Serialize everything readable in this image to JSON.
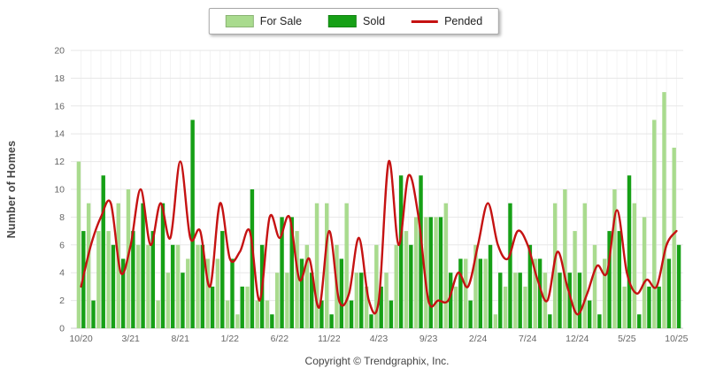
{
  "legend": {
    "items": [
      {
        "label": "For Sale",
        "color": "#a9db8e",
        "type": "swatch"
      },
      {
        "label": "Sold",
        "color": "#16a016",
        "type": "swatch"
      },
      {
        "label": "Pended",
        "color": "#c51212",
        "type": "line"
      }
    ]
  },
  "y_axis": {
    "title": "Number of Homes",
    "min": 0,
    "max": 20,
    "tick_step": 2,
    "tick_labels": [
      "0",
      "2",
      "4",
      "6",
      "8",
      "10",
      "12",
      "14",
      "16",
      "18",
      "20"
    ]
  },
  "x_axis": {
    "tick_labels": [
      "10/20",
      "3/21",
      "8/21",
      "1/22",
      "6/22",
      "11/22",
      "4/23",
      "9/23",
      "2/24",
      "7/24",
      "12/24",
      "5/25",
      "10/25"
    ],
    "label_every": 5
  },
  "footer": {
    "copyright": "Copyright © Trendgraphix, Inc."
  },
  "chart_data": {
    "type": "bar+line",
    "title": "",
    "xlabel": "",
    "ylabel": "Number of Homes",
    "ylim": [
      0,
      20
    ],
    "grid": "horizontal",
    "legend_position": "top-center",
    "categories": [
      "10/20",
      "11/20",
      "12/20",
      "1/21",
      "2/21",
      "3/21",
      "4/21",
      "5/21",
      "6/21",
      "7/21",
      "8/21",
      "9/21",
      "10/21",
      "11/21",
      "12/21",
      "1/22",
      "2/22",
      "3/22",
      "4/22",
      "5/22",
      "6/22",
      "7/22",
      "8/22",
      "9/22",
      "10/22",
      "11/22",
      "12/22",
      "1/23",
      "2/23",
      "3/23",
      "4/23",
      "5/23",
      "6/23",
      "7/23",
      "8/23",
      "9/23",
      "10/23",
      "11/23",
      "12/23",
      "1/24",
      "2/24",
      "3/24",
      "4/24",
      "5/24",
      "6/24",
      "7/24",
      "8/24",
      "9/24",
      "10/24",
      "11/24",
      "12/24",
      "1/25",
      "2/25",
      "3/25",
      "4/25",
      "5/25",
      "6/25",
      "7/25",
      "8/25",
      "9/25",
      "10/25"
    ],
    "series": [
      {
        "name": "For Sale",
        "type": "bar",
        "color": "#a9db8e",
        "values": [
          12,
          9,
          7,
          7,
          9,
          10,
          6,
          6,
          2,
          4,
          6,
          5,
          6,
          5,
          5,
          2,
          1,
          3,
          2,
          2,
          4,
          4,
          7,
          6,
          9,
          9,
          6,
          9,
          4,
          3,
          6,
          4,
          6,
          7,
          8,
          8,
          8,
          9,
          3,
          5,
          6,
          5,
          1,
          3,
          4,
          3,
          5,
          4,
          9,
          10,
          7,
          9,
          6,
          5,
          10,
          3,
          9,
          8,
          15,
          17,
          13
        ]
      },
      {
        "name": "Sold",
        "type": "bar",
        "color": "#16a016",
        "values": [
          7,
          2,
          11,
          6,
          5,
          7,
          9,
          7,
          9,
          6,
          4,
          15,
          6,
          3,
          7,
          5,
          3,
          10,
          6,
          1,
          8,
          8,
          5,
          4,
          2,
          1,
          5,
          2,
          4,
          1,
          3,
          2,
          11,
          6,
          11,
          8,
          8,
          4,
          5,
          2,
          5,
          6,
          4,
          9,
          4,
          6,
          5,
          1,
          4,
          4,
          4,
          2,
          1,
          7,
          7,
          11,
          1,
          3,
          3,
          5,
          6
        ]
      },
      {
        "name": "Pended",
        "type": "line",
        "color": "#c51212",
        "values": [
          3,
          6,
          8,
          9,
          4,
          6,
          10,
          6,
          9,
          6.5,
          12,
          6.5,
          7,
          3,
          9,
          5,
          5.5,
          7,
          2,
          8,
          6.5,
          8,
          3.5,
          5,
          1.5,
          7,
          2,
          2.5,
          6.5,
          2,
          2,
          12,
          6,
          11,
          8,
          2,
          2,
          2,
          4,
          3,
          6,
          9,
          6,
          5,
          7,
          6,
          3.5,
          2,
          5.5,
          3,
          1,
          2.5,
          4.5,
          4,
          8.5,
          4,
          2.5,
          3.5,
          3,
          6,
          7
        ]
      }
    ]
  }
}
